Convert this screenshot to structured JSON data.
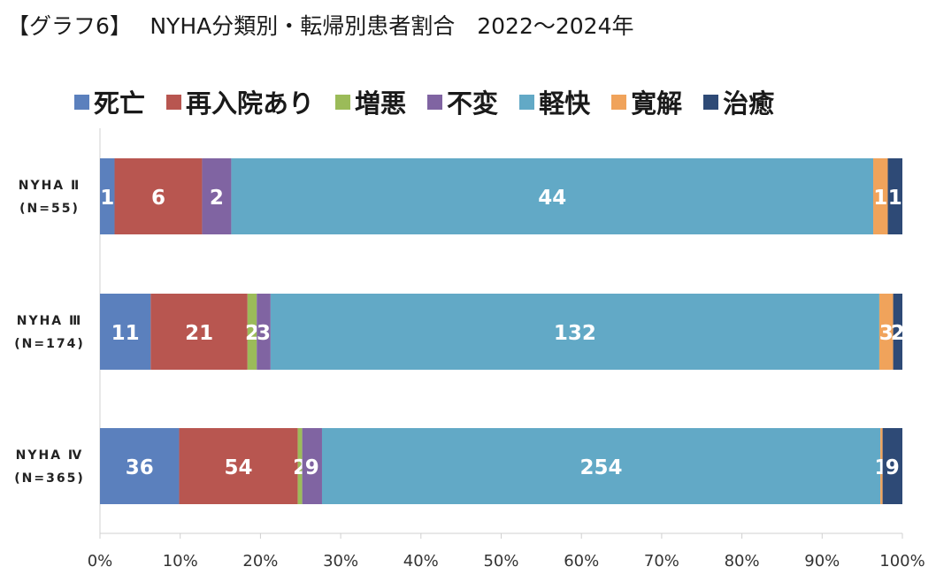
{
  "title": "【グラフ6】　 NYHA分類別・転帰別患者割合　2022～2024年",
  "chart_data": {
    "type": "bar",
    "orientation": "horizontal",
    "stacked": "percent",
    "title": "【グラフ6】　 NYHA分類別・転帰別患者割合　2022～2024年",
    "legend_position": "top",
    "grid": false,
    "xlim": [
      0,
      100
    ],
    "x_ticks": [
      "0%",
      "10%",
      "20%",
      "30%",
      "40%",
      "50%",
      "60%",
      "70%",
      "80%",
      "90%",
      "100%"
    ],
    "categories": [
      {
        "line1": "NYHA Ⅱ",
        "line2": "(N=55)"
      },
      {
        "line1": "NYHA Ⅲ",
        "line2": "(N=174)"
      },
      {
        "line1": "NYHA Ⅳ",
        "line2": "(N=365)"
      }
    ],
    "series": [
      {
        "name": "死亡",
        "color": "#5b80bd",
        "values": [
          1,
          11,
          36
        ]
      },
      {
        "name": "再入院あり",
        "color": "#b85650",
        "values": [
          6,
          21,
          54
        ]
      },
      {
        "name": "増悪",
        "color": "#9bbb59",
        "values": [
          0,
          2,
          2
        ]
      },
      {
        "name": "不変",
        "color": "#8064a2",
        "values": [
          2,
          3,
          9
        ]
      },
      {
        "name": "軽快",
        "color": "#62a9c6",
        "values": [
          44,
          132,
          254
        ]
      },
      {
        "name": "寛解",
        "color": "#f0a35b",
        "values": [
          1,
          3,
          1
        ]
      },
      {
        "name": "治癒",
        "color": "#2e4a76",
        "values": [
          1,
          2,
          9
        ]
      }
    ]
  }
}
